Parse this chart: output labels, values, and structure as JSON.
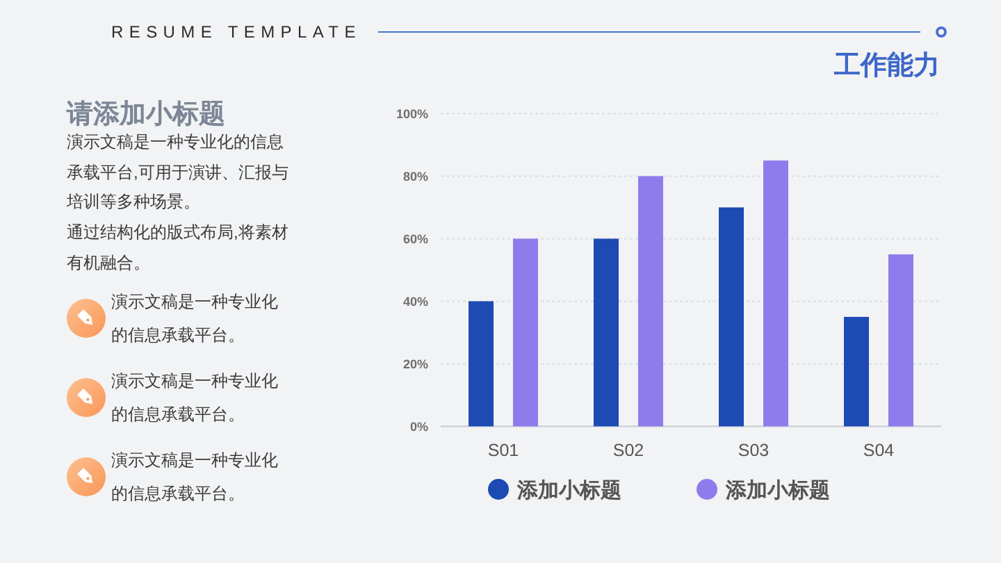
{
  "chart_data": {
    "type": "bar",
    "title": "工作能力",
    "subtitle": "请添加小标题",
    "annotations": [
      "RESUME TEMPLATE",
      "演示文稿是一种专业化的信息承载平台,可用于演讲、汇报与培训等多种场景。",
      "通过结构化的版式布局,将素材有机融合。",
      "演示文稿是一种专业化的信息承载平台。",
      "演示文稿是一种专业化的信息承载平台。",
      "演示文稿是一种专业化的信息承载平台。"
    ],
    "categories": [
      "S01",
      "S02",
      "S03",
      "S04"
    ],
    "series": [
      {
        "name": "添加小标题",
        "color": "#1d4ab3",
        "values": [
          40,
          60,
          70,
          35
        ]
      },
      {
        "name": "添加小标题",
        "color": "#8e7cec",
        "values": [
          60,
          80,
          85,
          55
        ]
      }
    ],
    "ylim": [
      0,
      100
    ],
    "yticks": [
      {
        "value": 0,
        "label": "0%"
      },
      {
        "value": 20,
        "label": "20%"
      },
      {
        "value": 40,
        "label": "40%"
      },
      {
        "value": 60,
        "label": "60%"
      },
      {
        "value": 80,
        "label": "80%"
      },
      {
        "value": 100,
        "label": "100%"
      }
    ],
    "grid": "y",
    "legend": "bottom"
  }
}
